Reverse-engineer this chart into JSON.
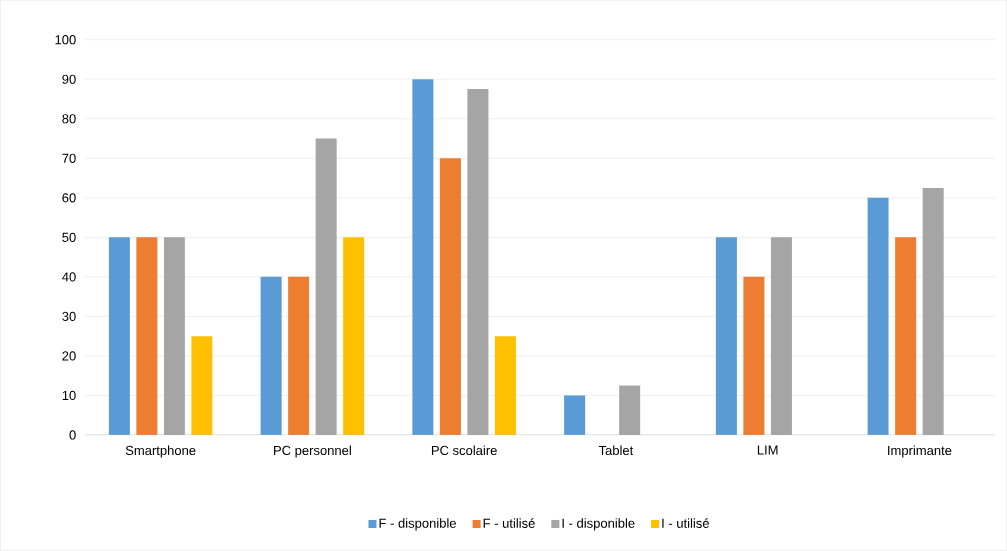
{
  "chart_data": {
    "type": "bar",
    "categories": [
      "Smartphone",
      "PC personnel",
      "PC scolaire",
      "Tablet",
      "LIM",
      "Imprimante"
    ],
    "series": [
      {
        "name": "F - disponible",
        "color": "#5b9bd5",
        "values": [
          50,
          40,
          90,
          10,
          50,
          60
        ]
      },
      {
        "name": "F - utilisé",
        "color": "#ed7d31",
        "values": [
          50,
          40,
          70,
          0,
          40,
          50
        ]
      },
      {
        "name": "I - disponible",
        "color": "#a5a5a5",
        "values": [
          50,
          75,
          87.5,
          12.5,
          50,
          62.5
        ]
      },
      {
        "name": "I - utilisé",
        "color": "#ffc000",
        "values": [
          25,
          50,
          25,
          0,
          0,
          0
        ]
      }
    ],
    "ylim": [
      0,
      100
    ],
    "yticks": [
      0,
      10,
      20,
      30,
      40,
      50,
      60,
      70,
      80,
      90,
      100
    ],
    "grid": "y",
    "legend": "bottom"
  }
}
